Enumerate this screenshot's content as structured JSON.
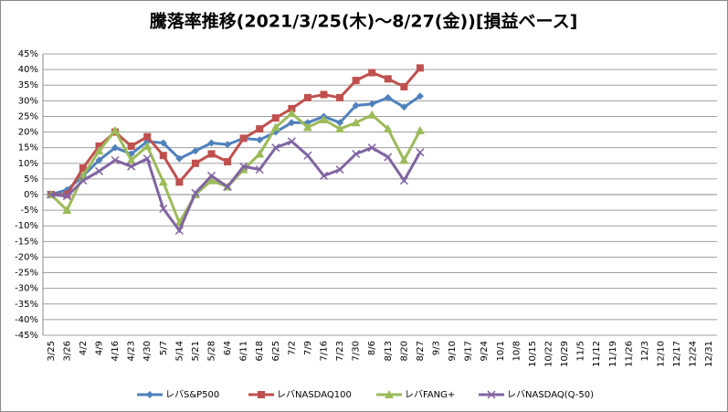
{
  "chart_data": {
    "type": "line",
    "title": "騰落率推移(2021/3/25(木)～8/27(金))[損益ベース]",
    "categories": [
      "3/25",
      "3/26",
      "4/2",
      "4/9",
      "4/16",
      "4/23",
      "4/30",
      "5/7",
      "5/14",
      "5/21",
      "5/28",
      "6/4",
      "6/11",
      "6/18",
      "6/25",
      "7/2",
      "7/9",
      "7/16",
      "7/23",
      "7/30",
      "8/6",
      "8/13",
      "8/20",
      "8/27",
      "9/3",
      "9/10",
      "9/17",
      "9/24",
      "10/1",
      "10/8",
      "10/15",
      "10/22",
      "10/29",
      "11/5",
      "11/12",
      "11/19",
      "11/26",
      "12/3",
      "12/10",
      "12/17",
      "12/24",
      "12/31"
    ],
    "series": [
      {
        "name": "レバS&P500",
        "color": "#4f81bd",
        "marker": "diamond",
        "values": [
          0,
          1.5,
          6,
          11,
          15,
          13,
          17,
          16.5,
          11.5,
          14,
          16.5,
          16,
          18,
          17.5,
          20,
          23,
          23,
          25,
          23,
          28.5,
          29,
          31,
          28,
          31.5,
          null,
          null,
          null,
          null,
          null,
          null,
          null,
          null,
          null,
          null,
          null,
          null,
          null,
          null,
          null,
          null,
          null,
          null
        ]
      },
      {
        "name": "レバNASDAQ100",
        "color": "#c0504d",
        "marker": "square",
        "values": [
          0,
          0,
          8.5,
          15.5,
          20,
          15.5,
          18.5,
          12.5,
          4,
          10,
          13,
          10.5,
          18,
          21,
          24.5,
          27.5,
          31,
          32,
          31,
          36.5,
          39,
          37,
          34.5,
          40.5,
          null,
          null,
          null,
          null,
          null,
          null,
          null,
          null,
          null,
          null,
          null,
          null,
          null,
          null,
          null,
          null,
          null,
          null
        ]
      },
      {
        "name": "レバFANG+",
        "color": "#9bbb59",
        "marker": "triangle",
        "values": [
          0,
          -5,
          6,
          14,
          20.5,
          11,
          15.5,
          4,
          -9,
          0,
          4.5,
          2.5,
          8,
          13,
          21.5,
          26,
          21.5,
          24,
          21,
          23,
          25.5,
          21,
          11,
          20.5,
          null,
          null,
          null,
          null,
          null,
          null,
          null,
          null,
          null,
          null,
          null,
          null,
          null,
          null,
          null,
          null,
          null,
          null
        ]
      },
      {
        "name": "レバNASDAQ(Q-50)",
        "color": "#8064a2",
        "marker": "x",
        "values": [
          0,
          -0.5,
          4.5,
          7.5,
          11,
          9,
          11.5,
          -4.5,
          -11.5,
          0.5,
          6,
          2.5,
          9,
          8,
          15,
          17,
          12.5,
          6,
          8,
          13,
          15,
          12,
          4.5,
          13.5,
          null,
          null,
          null,
          null,
          null,
          null,
          null,
          null,
          null,
          null,
          null,
          null,
          null,
          null,
          null,
          null,
          null,
          null
        ]
      }
    ],
    "ylim": [
      -45,
      45
    ],
    "yticks": [
      {
        "value": -45,
        "label": "-45%"
      },
      {
        "value": -40,
        "label": "-40%"
      },
      {
        "value": -35,
        "label": "-35%"
      },
      {
        "value": -30,
        "label": "-30%"
      },
      {
        "value": -25,
        "label": "-25%"
      },
      {
        "value": -20,
        "label": "-20%"
      },
      {
        "value": -15,
        "label": "-15%"
      },
      {
        "value": -10,
        "label": "-10%"
      },
      {
        "value": -5,
        "label": "-5%"
      },
      {
        "value": 0,
        "label": "0%"
      },
      {
        "value": 5,
        "label": "5%"
      },
      {
        "value": 10,
        "label": "10%"
      },
      {
        "value": 15,
        "label": "15%"
      },
      {
        "value": 20,
        "label": "20%"
      },
      {
        "value": 25,
        "label": "25%"
      },
      {
        "value": 30,
        "label": "30%"
      },
      {
        "value": 35,
        "label": "35%"
      },
      {
        "value": 40,
        "label": "40%"
      },
      {
        "value": 45,
        "label": "45%"
      }
    ],
    "grid": true,
    "legend": "bottom"
  }
}
